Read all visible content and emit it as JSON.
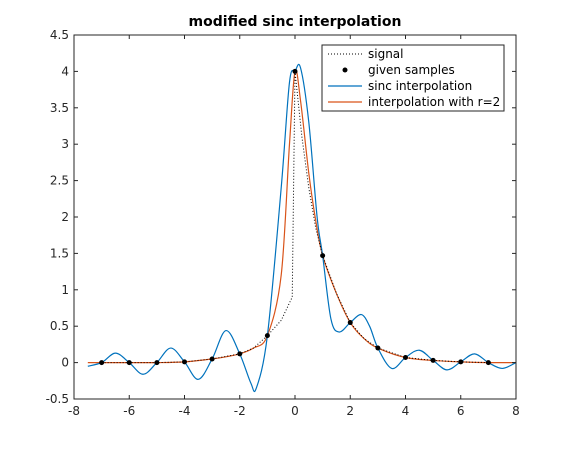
{
  "chart_data": {
    "type": "line",
    "title": "modified sinc interpolation",
    "xlabel": "",
    "ylabel": "",
    "xlim": [
      -8,
      8
    ],
    "ylim": [
      -0.5,
      4.5
    ],
    "x_ticks": [
      -8,
      -6,
      -4,
      -2,
      0,
      2,
      4,
      6,
      8
    ],
    "y_ticks": [
      -0.5,
      0,
      0.5,
      1,
      1.5,
      2,
      2.5,
      3,
      3.5,
      4,
      4.5
    ],
    "x_tick_labels": [
      "-8",
      "-6",
      "-4",
      "-2",
      "0",
      "2",
      "4",
      "6",
      "8"
    ],
    "y_tick_labels": [
      "-0.5",
      "0",
      "0.5",
      "1",
      "1.5",
      "2",
      "2.5",
      "3",
      "3.5",
      "4",
      "4.5"
    ],
    "grid": false,
    "legend_position": "top-right",
    "legend": [
      "signal",
      "given samples",
      "sinc interpolation",
      "interpolation with r=2"
    ],
    "colors": {
      "signal": "#000000",
      "samples": "#000000",
      "sinc": "#0072BD",
      "modified": "#D95319"
    },
    "samples": {
      "x": [
        -7,
        -6,
        -5,
        -4,
        -3,
        -2,
        -1,
        0,
        1,
        2,
        3,
        4,
        5,
        6,
        7
      ],
      "y": [
        0,
        0,
        0,
        0.01,
        0.05,
        0.12,
        0.37,
        4.0,
        1.47,
        0.55,
        0.2,
        0.07,
        0.03,
        0.01,
        0
      ]
    },
    "series": [
      {
        "name": "signal",
        "style": "dotted",
        "x": [
          -7,
          -6,
          -5,
          -4,
          -3,
          -2,
          -1.5,
          -1,
          -0.5,
          -0.1,
          0,
          0.25,
          0.5,
          0.75,
          1,
          1.5,
          2,
          2.5,
          3,
          4,
          5,
          6,
          7
        ],
        "y": [
          0,
          0,
          0,
          0.01,
          0.05,
          0.12,
          0.2,
          0.37,
          0.58,
          0.9,
          4.0,
          3.1,
          2.4,
          1.85,
          1.47,
          0.95,
          0.55,
          0.33,
          0.2,
          0.07,
          0.03,
          0.01,
          0
        ]
      },
      {
        "name": "sinc interpolation",
        "x": [
          -7.5,
          -7,
          -6.5,
          -6,
          -5.5,
          -5,
          -4.5,
          -4,
          -3.5,
          -3,
          -2.5,
          -2,
          -1.6,
          -1.4,
          -1,
          -0.5,
          -0.2,
          0,
          0.2,
          0.5,
          0.8,
          1,
          1.3,
          1.6,
          2,
          2.4,
          2.7,
          3,
          3.5,
          4,
          4.5,
          5,
          5.5,
          6,
          6.5,
          7,
          7.5,
          8
        ],
        "y": [
          -0.05,
          0,
          0.13,
          0,
          -0.16,
          0,
          0.2,
          0.01,
          -0.23,
          0.05,
          0.44,
          0.12,
          -0.28,
          -0.35,
          0.37,
          2.4,
          3.85,
          4.0,
          4.05,
          3.3,
          2.0,
          1.47,
          0.6,
          0.42,
          0.55,
          0.66,
          0.5,
          0.2,
          -0.08,
          0.07,
          0.17,
          0.03,
          -0.1,
          0.01,
          0.12,
          0,
          -0.08,
          0
        ]
      },
      {
        "name": "interpolation with r=2",
        "x": [
          -7.5,
          -7,
          -6,
          -5,
          -4,
          -3,
          -2.5,
          -2,
          -1.5,
          -1,
          -0.5,
          -0.2,
          0,
          0.2,
          0.5,
          0.75,
          1,
          1.5,
          2,
          2.5,
          3,
          4,
          5,
          6,
          7,
          8
        ],
        "y": [
          0,
          0,
          0,
          0,
          0.01,
          0.05,
          0.08,
          0.12,
          0.2,
          0.37,
          1.2,
          3.0,
          4.0,
          3.6,
          2.6,
          1.95,
          1.47,
          0.95,
          0.55,
          0.33,
          0.2,
          0.07,
          0.03,
          0.01,
          0,
          0
        ]
      }
    ]
  }
}
